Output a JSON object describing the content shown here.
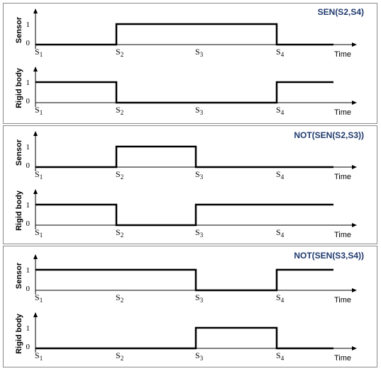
{
  "panels": [
    {
      "title": "SEN(S2,S4)",
      "rows": [
        {
          "label": "Sensor",
          "levels": [
            0,
            1,
            0
          ],
          "breaks": [
            "S1",
            "S2",
            "S4",
            "end"
          ]
        },
        {
          "label": "Rigid body",
          "levels": [
            1,
            0,
            1
          ],
          "breaks": [
            "S1",
            "S2",
            "S4",
            "end"
          ]
        }
      ]
    },
    {
      "title": "NOT(SEN(S2,S3))",
      "rows": [
        {
          "label": "Sensor",
          "levels": [
            0,
            1,
            0
          ],
          "breaks": [
            "S1",
            "S2",
            "S3",
            "end"
          ]
        },
        {
          "label": "Rigid body",
          "levels": [
            1,
            0,
            1
          ],
          "breaks": [
            "S1",
            "S2",
            "S3",
            "end"
          ]
        }
      ]
    },
    {
      "title": "NOT(SEN(S3,S4))",
      "rows": [
        {
          "label": "Sensor",
          "levels": [
            1,
            0,
            1
          ],
          "breaks": [
            "S1",
            "S3",
            "S4",
            "end"
          ]
        },
        {
          "label": "Rigid body",
          "levels": [
            0,
            1,
            0
          ],
          "breaks": [
            "S1",
            "S3",
            "S4",
            "end"
          ]
        }
      ]
    }
  ],
  "y_ticks": [
    "1",
    "0"
  ],
  "x_axis_label": "Time",
  "instants": [
    {
      "key": "S1",
      "main": "S",
      "sub": "1"
    },
    {
      "key": "S2",
      "main": "S",
      "sub": "2"
    },
    {
      "key": "S3",
      "main": "S",
      "sub": "3"
    },
    {
      "key": "S4",
      "main": "S",
      "sub": "4"
    }
  ]
}
